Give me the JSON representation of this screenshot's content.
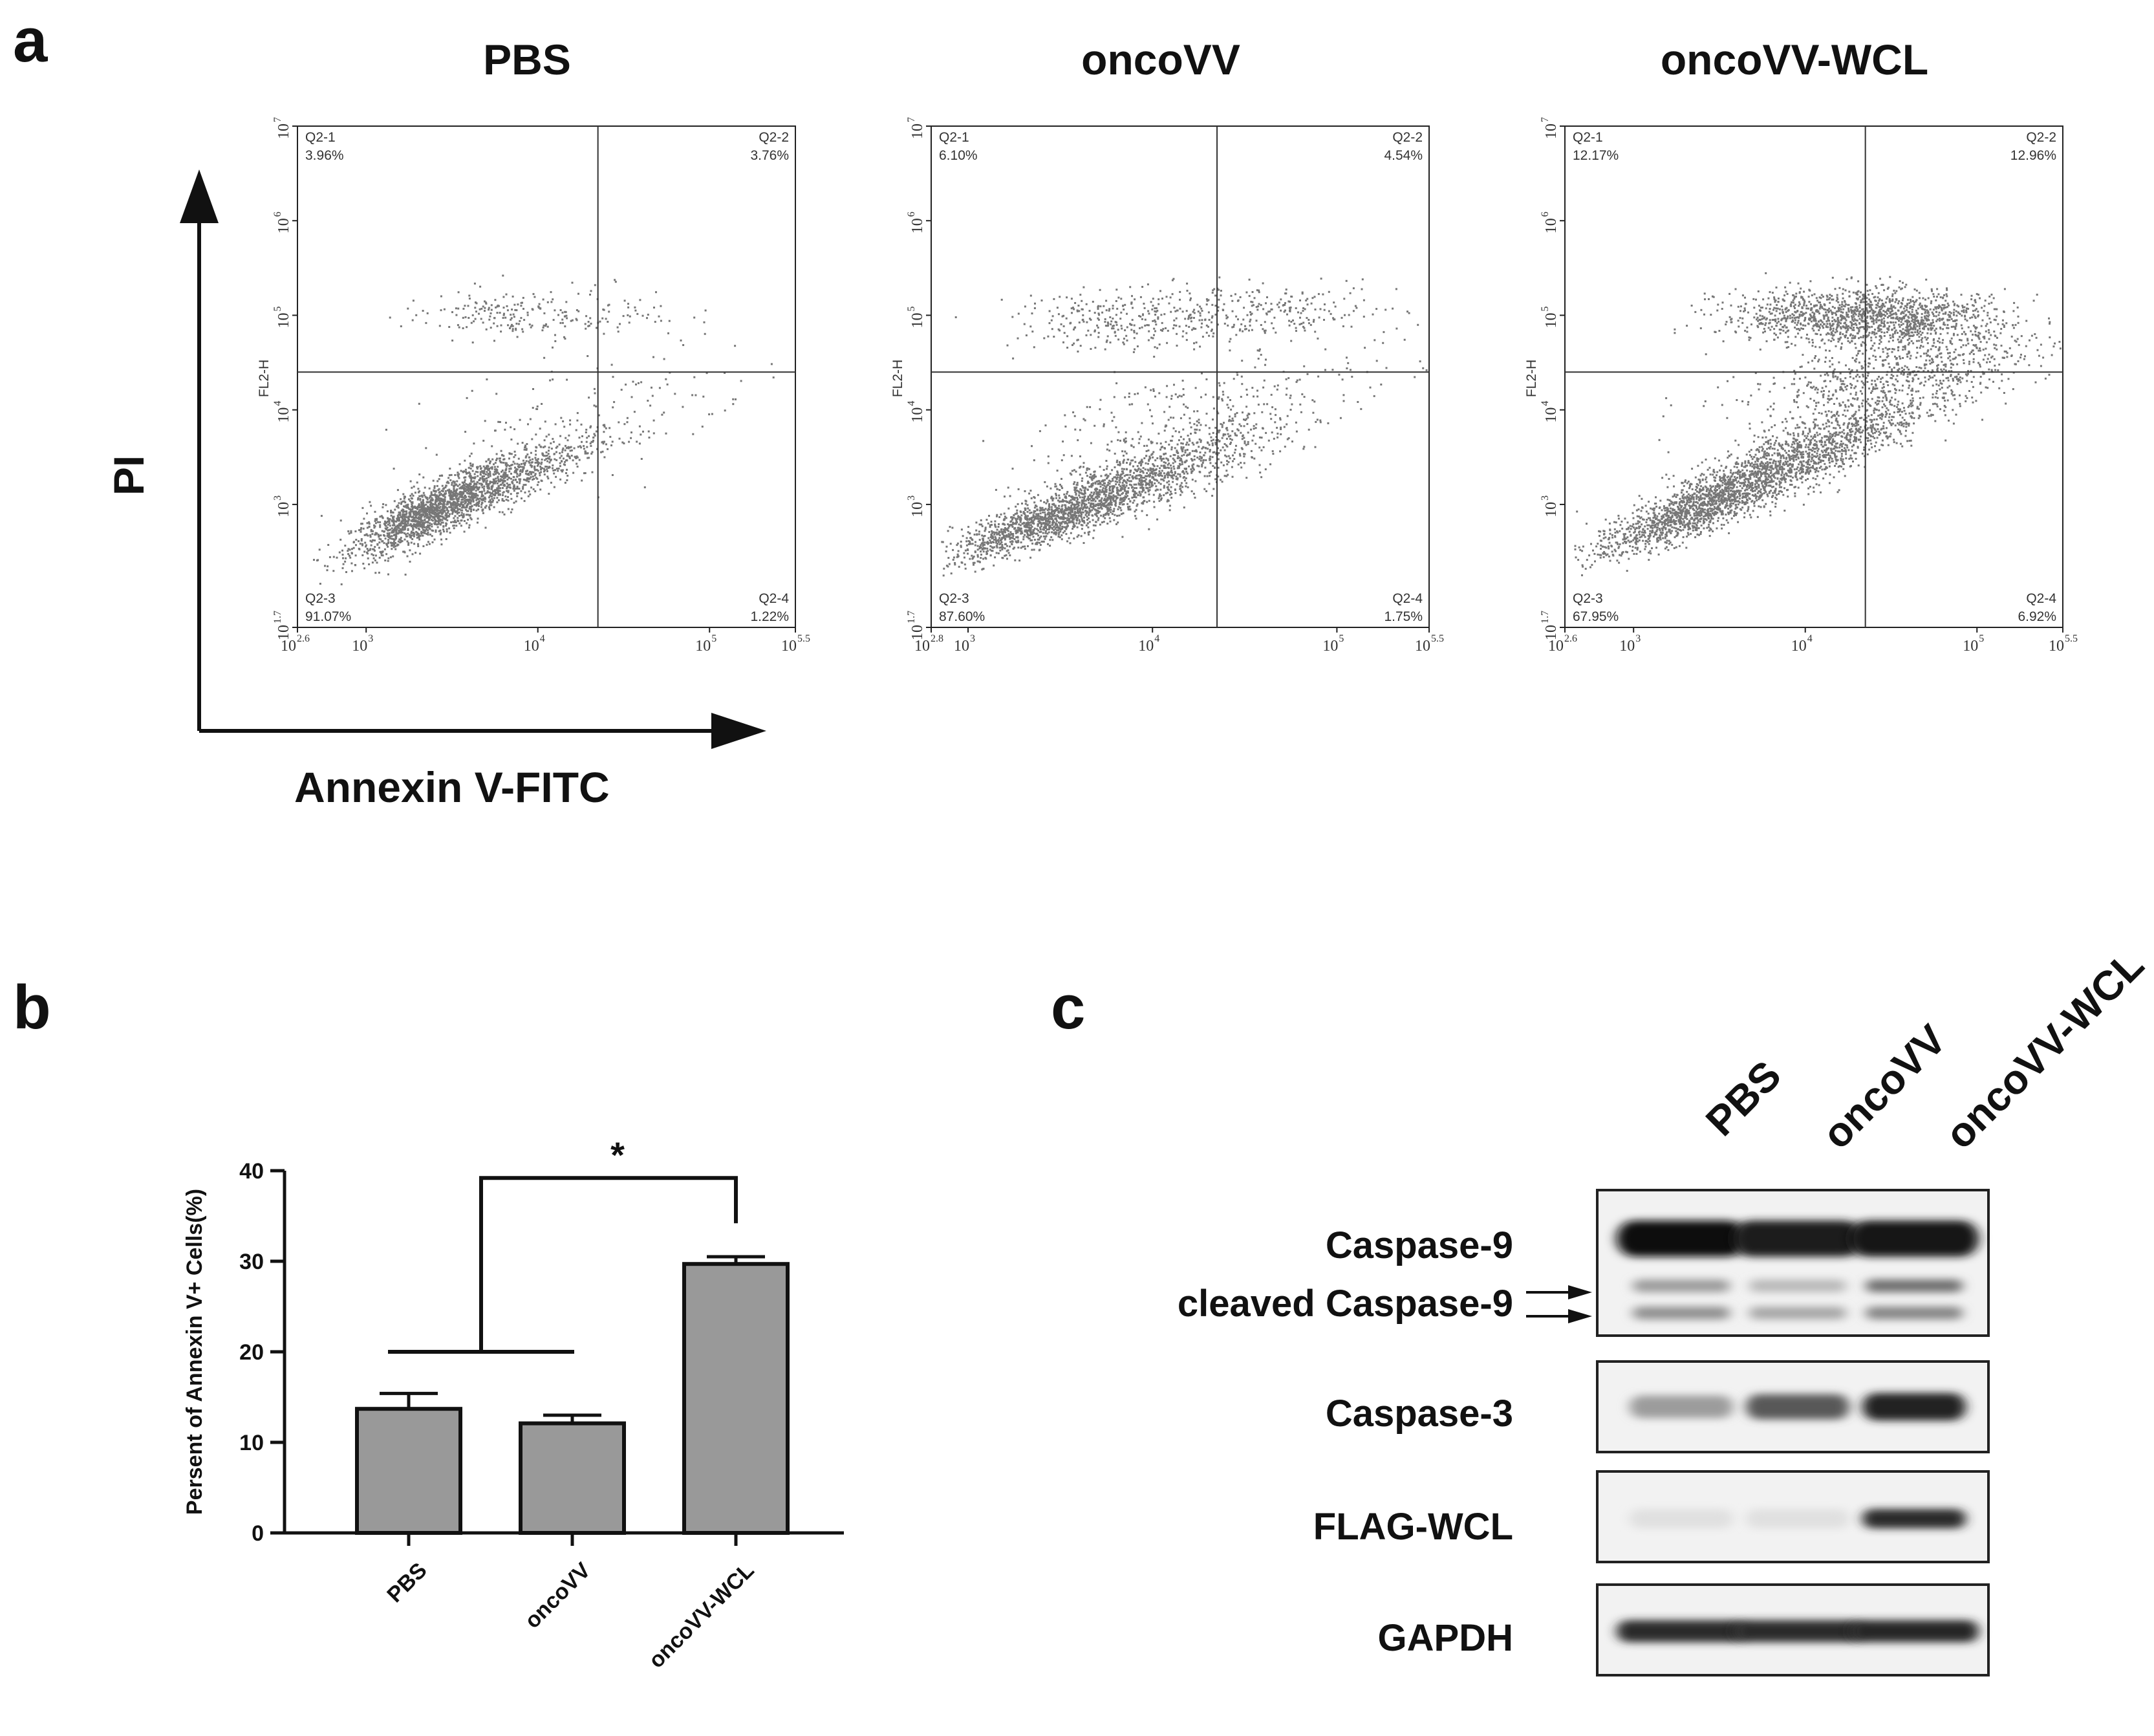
{
  "panel_a": {
    "letter": "a",
    "y_axis_label": "PI",
    "x_axis_label": "Annexin V-FITC"
  },
  "panel_b": {
    "letter": "b"
  },
  "panel_c": {
    "letter": "c"
  },
  "chart_data": [
    {
      "type": "scatter",
      "subtype": "flow-cytometry-quadrant",
      "title": "PBS",
      "xlabel": "",
      "ylabel": "FL2-H",
      "x_scale": "log10",
      "y_scale": "log10",
      "xlim_log": [
        2.6,
        5.5
      ],
      "ylim_log": [
        1.7,
        7
      ],
      "x_ticks": [
        {
          "base": "10",
          "exp": "2.6",
          "v": 2.6
        },
        {
          "base": "10",
          "exp": "3",
          "v": 3
        },
        {
          "base": "10",
          "exp": "4",
          "v": 4
        },
        {
          "base": "10",
          "exp": "5",
          "v": 5
        },
        {
          "base": "10",
          "exp": "5.5",
          "v": 5.5
        }
      ],
      "y_ticks": [
        {
          "base": "10",
          "exp": "1.7",
          "v": 1.7
        },
        {
          "base": "10",
          "exp": "3",
          "v": 3
        },
        {
          "base": "10",
          "exp": "4",
          "v": 4
        },
        {
          "base": "10",
          "exp": "5",
          "v": 5
        },
        {
          "base": "10",
          "exp": "6",
          "v": 6
        },
        {
          "base": "10",
          "exp": "7",
          "v": 7
        }
      ],
      "gate_x_log": 4.35,
      "gate_y_log": 4.4,
      "quadrants": {
        "q1": {
          "name": "Q2-1",
          "pct": "3.96%"
        },
        "q2": {
          "name": "Q2-2",
          "pct": "3.76%"
        },
        "q3": {
          "name": "Q2-3",
          "pct": "91.07%"
        },
        "q4": {
          "name": "Q2-4",
          "pct": "1.22%"
        }
      }
    },
    {
      "type": "scatter",
      "subtype": "flow-cytometry-quadrant",
      "title": "oncoVV",
      "xlabel": "",
      "ylabel": "FL2-H",
      "x_scale": "log10",
      "y_scale": "log10",
      "xlim_log": [
        2.8,
        5.5
      ],
      "ylim_log": [
        1.7,
        7
      ],
      "x_ticks": [
        {
          "base": "10",
          "exp": "2.8",
          "v": 2.8
        },
        {
          "base": "10",
          "exp": "3",
          "v": 3
        },
        {
          "base": "10",
          "exp": "4",
          "v": 4
        },
        {
          "base": "10",
          "exp": "5",
          "v": 5
        },
        {
          "base": "10",
          "exp": "5.5",
          "v": 5.5
        }
      ],
      "y_ticks": [
        {
          "base": "10",
          "exp": "1.7",
          "v": 1.7
        },
        {
          "base": "10",
          "exp": "3",
          "v": 3
        },
        {
          "base": "10",
          "exp": "4",
          "v": 4
        },
        {
          "base": "10",
          "exp": "5",
          "v": 5
        },
        {
          "base": "10",
          "exp": "6",
          "v": 6
        },
        {
          "base": "10",
          "exp": "7",
          "v": 7
        }
      ],
      "gate_x_log": 4.35,
      "gate_y_log": 4.4,
      "quadrants": {
        "q1": {
          "name": "Q2-1",
          "pct": "6.10%"
        },
        "q2": {
          "name": "Q2-2",
          "pct": "4.54%"
        },
        "q3": {
          "name": "Q2-3",
          "pct": "87.60%"
        },
        "q4": {
          "name": "Q2-4",
          "pct": "1.75%"
        }
      }
    },
    {
      "type": "scatter",
      "subtype": "flow-cytometry-quadrant",
      "title": "oncoVV-WCL",
      "xlabel": "",
      "ylabel": "FL2-H",
      "x_scale": "log10",
      "y_scale": "log10",
      "xlim_log": [
        2.6,
        5.5
      ],
      "ylim_log": [
        1.7,
        7
      ],
      "x_ticks": [
        {
          "base": "10",
          "exp": "2.6",
          "v": 2.6
        },
        {
          "base": "10",
          "exp": "3",
          "v": 3
        },
        {
          "base": "10",
          "exp": "4",
          "v": 4
        },
        {
          "base": "10",
          "exp": "5",
          "v": 5
        },
        {
          "base": "10",
          "exp": "5.5",
          "v": 5.5
        }
      ],
      "y_ticks": [
        {
          "base": "10",
          "exp": "1.7",
          "v": 1.7
        },
        {
          "base": "10",
          "exp": "3",
          "v": 3
        },
        {
          "base": "10",
          "exp": "4",
          "v": 4
        },
        {
          "base": "10",
          "exp": "5",
          "v": 5
        },
        {
          "base": "10",
          "exp": "6",
          "v": 6
        },
        {
          "base": "10",
          "exp": "7",
          "v": 7
        }
      ],
      "gate_x_log": 4.35,
      "gate_y_log": 4.4,
      "quadrants": {
        "q1": {
          "name": "Q2-1",
          "pct": "12.17%"
        },
        "q2": {
          "name": "Q2-2",
          "pct": "12.96%"
        },
        "q3": {
          "name": "Q2-3",
          "pct": "67.95%"
        },
        "q4": {
          "name": "Q2-4",
          "pct": "6.92%"
        }
      }
    },
    {
      "type": "bar",
      "title": "",
      "xlabel": "",
      "ylabel": "Persent of Annexin V+ Cells(%)",
      "categories": [
        "PBS",
        "oncoVV",
        "oncoVV-WCL"
      ],
      "values": [
        13.7,
        12.1,
        29.7
      ],
      "errors": [
        1.7,
        0.9,
        0.8
      ],
      "ylim": [
        0,
        40
      ],
      "yticks": [
        0,
        10,
        20,
        30,
        40
      ],
      "bar_color": "#999999",
      "significance": {
        "label": "*",
        "group_a": [
          0,
          1
        ],
        "group_b": [
          2
        ],
        "bar_level": 20,
        "top_level": 39.2
      }
    },
    {
      "type": "western-blot",
      "lanes": [
        "PBS",
        "oncoVV",
        "oncoVV-WCL"
      ],
      "blots": [
        {
          "labels": [
            "Caspase-9",
            "cleaved Caspase-9"
          ],
          "bands": {
            "main": [
              1.0,
              0.92,
              0.96
            ],
            "cleaved_upper": [
              0.35,
              0.22,
              0.55
            ],
            "cleaved_lower": [
              0.4,
              0.3,
              0.45
            ]
          }
        },
        {
          "labels": [
            "Caspase-3"
          ],
          "bands": {
            "main": [
              0.35,
              0.65,
              0.9
            ]
          }
        },
        {
          "labels": [
            "FLAG-WCL"
          ],
          "bands": {
            "main": [
              0.05,
              0.05,
              0.85
            ]
          }
        },
        {
          "labels": [
            "GAPDH"
          ],
          "bands": {
            "main": [
              0.85,
              0.85,
              0.88
            ]
          }
        }
      ]
    }
  ]
}
